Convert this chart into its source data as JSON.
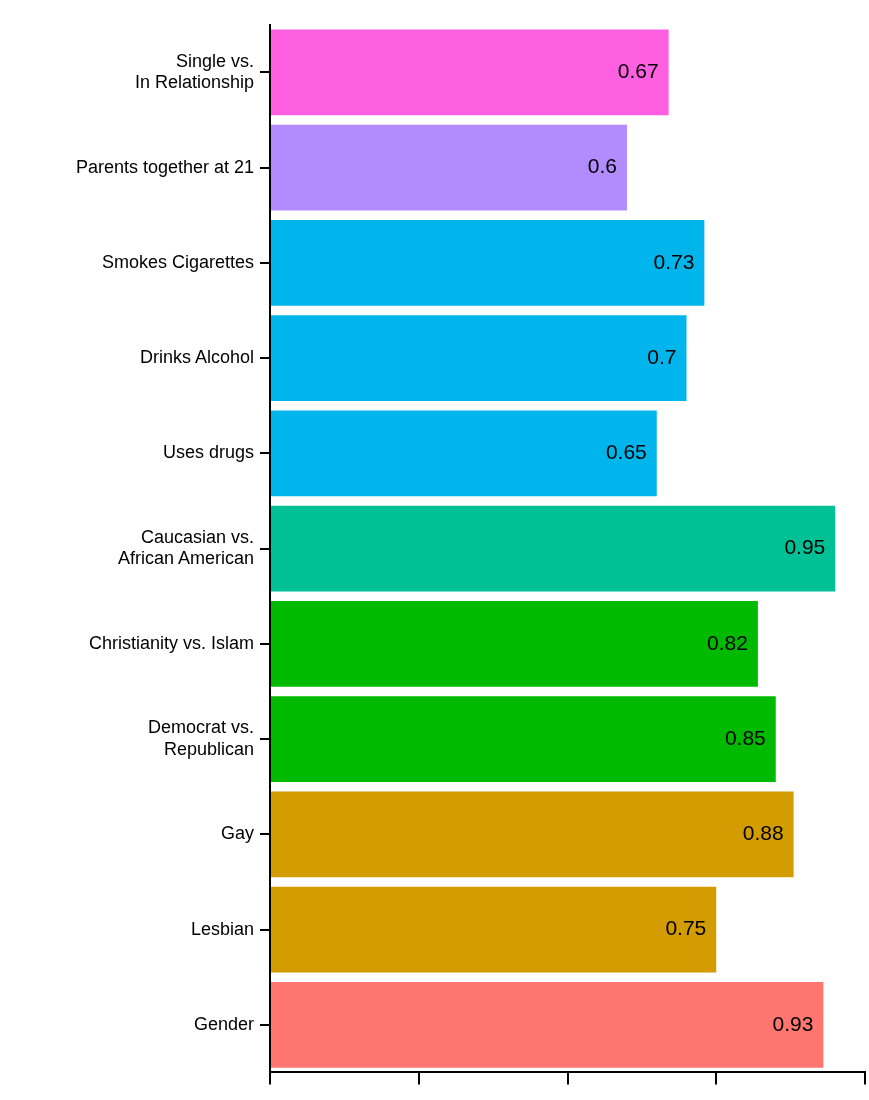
{
  "chart_data": {
    "type": "bar",
    "orientation": "horizontal",
    "categories": [
      "Single vs.\nIn Relationship",
      "Parents together at 21",
      "Smokes Cigarettes",
      "Drinks Alcohol",
      "Uses drugs",
      "Caucasian vs.\nAfrican American",
      "Christianity vs. Islam",
      "Democrat vs.\nRepublican",
      "Gay",
      "Lesbian",
      "Gender"
    ],
    "values": [
      0.67,
      0.6,
      0.73,
      0.7,
      0.65,
      0.95,
      0.82,
      0.85,
      0.88,
      0.75,
      0.93
    ],
    "colors": [
      "#ff5fe0",
      "#b28cff",
      "#00b5ec",
      "#00b5ec",
      "#00b5ec",
      "#00c096",
      "#00ba00",
      "#00ba00",
      "#d39c00",
      "#d39c00",
      "#ff7670"
    ],
    "xlim": [
      0,
      1
    ],
    "xticks": [
      {
        "value": 0,
        "label": null
      },
      {
        "value": 0.25,
        "label": null
      },
      {
        "value": 0.5,
        "label": null
      },
      {
        "value": 0.75,
        "label": null
      },
      {
        "value": 1,
        "label": null
      }
    ],
    "tick_labels": "y",
    "data_labels": true,
    "grid": false,
    "legend": false
  }
}
